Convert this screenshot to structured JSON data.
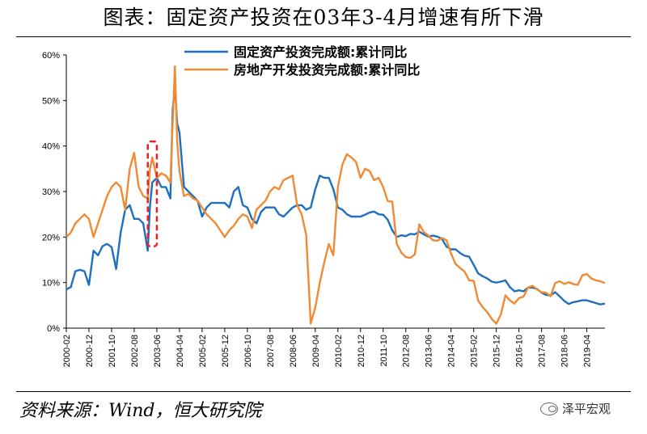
{
  "title": "图表：固定资产投资在03年3-4月增速有所下滑",
  "source": "资料来源：Wind，恒大研究院",
  "watermark": "泽平宏观",
  "colors": {
    "fixed_asset": "#1f6fbf",
    "real_estate": "#f08a33",
    "highlight_box": "#e8202a"
  },
  "chart_data": {
    "type": "line",
    "title": "",
    "xlabel": "",
    "ylabel": "",
    "x_range": [
      "2000-02",
      "2019-12"
    ],
    "ylim": [
      0,
      60
    ],
    "y_ticks": [
      "0%",
      "10%",
      "20%",
      "30%",
      "40%",
      "50%",
      "60%"
    ],
    "y_tick_values": [
      0,
      10,
      20,
      30,
      40,
      50,
      60
    ],
    "x_ticks": [
      "2000-02",
      "2000-12",
      "2001-10",
      "2002-08",
      "2003-06",
      "2004-04",
      "2005-02",
      "2005-12",
      "2006-10",
      "2007-08",
      "2008-06",
      "2009-04",
      "2010-02",
      "2010-12",
      "2011-10",
      "2012-08",
      "2013-06",
      "2014-04",
      "2015-02",
      "2015-12",
      "2016-10",
      "2017-08",
      "2018-06",
      "2019-04"
    ],
    "legend_position": "top",
    "highlight_box": {
      "x_start": "2003-02",
      "x_end": "2003-06",
      "y_start": 18,
      "y_end": 41,
      "style": "dashed"
    },
    "series": [
      {
        "name": "固定资产投资完成额:累计同比",
        "color_key": "fixed_asset",
        "points": [
          [
            "2000-02",
            8.5
          ],
          [
            "2000-04",
            9
          ],
          [
            "2000-06",
            12.5
          ],
          [
            "2000-08",
            12.8
          ],
          [
            "2000-10",
            12.5
          ],
          [
            "2000-12",
            9.5
          ],
          [
            "2001-02",
            17
          ],
          [
            "2001-04",
            16
          ],
          [
            "2001-06",
            18
          ],
          [
            "2001-08",
            18.5
          ],
          [
            "2001-10",
            17.8
          ],
          [
            "2001-12",
            13
          ],
          [
            "2002-02",
            21
          ],
          [
            "2002-04",
            26
          ],
          [
            "2002-06",
            27
          ],
          [
            "2002-08",
            24
          ],
          [
            "2002-10",
            24
          ],
          [
            "2002-12",
            23
          ],
          [
            "2003-02",
            17
          ],
          [
            "2003-03",
            27
          ],
          [
            "2003-04",
            32
          ],
          [
            "2003-06",
            33
          ],
          [
            "2003-08",
            31
          ],
          [
            "2003-10",
            31
          ],
          [
            "2003-12",
            28.5
          ],
          [
            "2004-01",
            48
          ],
          [
            "2004-02",
            53
          ],
          [
            "2004-03",
            45
          ],
          [
            "2004-04",
            43
          ],
          [
            "2004-06",
            31
          ],
          [
            "2004-08",
            30
          ],
          [
            "2004-10",
            29
          ],
          [
            "2004-12",
            28
          ],
          [
            "2005-02",
            24.5
          ],
          [
            "2005-04",
            26.5
          ],
          [
            "2005-06",
            27.5
          ],
          [
            "2005-08",
            27.5
          ],
          [
            "2005-10",
            27.5
          ],
          [
            "2005-12",
            27.5
          ],
          [
            "2006-02",
            26.5
          ],
          [
            "2006-04",
            30
          ],
          [
            "2006-06",
            31
          ],
          [
            "2006-08",
            27
          ],
          [
            "2006-10",
            26.5
          ],
          [
            "2006-12",
            24
          ],
          [
            "2007-02",
            23
          ],
          [
            "2007-04",
            25.5
          ],
          [
            "2007-06",
            26.5
          ],
          [
            "2007-08",
            26.5
          ],
          [
            "2007-10",
            26.5
          ],
          [
            "2007-12",
            25
          ],
          [
            "2008-02",
            24.5
          ],
          [
            "2008-04",
            25.5
          ],
          [
            "2008-06",
            26.5
          ],
          [
            "2008-08",
            27
          ],
          [
            "2008-10",
            27
          ],
          [
            "2008-12",
            26
          ],
          [
            "2009-02",
            26.5
          ],
          [
            "2009-04",
            30.5
          ],
          [
            "2009-06",
            33.5
          ],
          [
            "2009-08",
            33
          ],
          [
            "2009-10",
            33
          ],
          [
            "2009-12",
            30.5
          ],
          [
            "2010-02",
            26.5
          ],
          [
            "2010-04",
            26
          ],
          [
            "2010-06",
            25
          ],
          [
            "2010-08",
            24.5
          ],
          [
            "2010-10",
            24.5
          ],
          [
            "2010-12",
            24.5
          ],
          [
            "2011-02",
            24.9
          ],
          [
            "2011-04",
            25.4
          ],
          [
            "2011-06",
            25.6
          ],
          [
            "2011-08",
            25
          ],
          [
            "2011-10",
            24.9
          ],
          [
            "2011-12",
            23.8
          ],
          [
            "2012-02",
            21.5
          ],
          [
            "2012-04",
            20
          ],
          [
            "2012-06",
            20.4
          ],
          [
            "2012-08",
            20.2
          ],
          [
            "2012-10",
            20.7
          ],
          [
            "2012-12",
            20.6
          ],
          [
            "2013-02",
            21.2
          ],
          [
            "2013-04",
            20.6
          ],
          [
            "2013-06",
            20.1
          ],
          [
            "2013-08",
            20.3
          ],
          [
            "2013-10",
            20.1
          ],
          [
            "2013-12",
            19.6
          ],
          [
            "2014-02",
            17.9
          ],
          [
            "2014-04",
            17.3
          ],
          [
            "2014-06",
            17.3
          ],
          [
            "2014-08",
            16.5
          ],
          [
            "2014-10",
            15.9
          ],
          [
            "2014-12",
            15.7
          ],
          [
            "2015-02",
            13.9
          ],
          [
            "2015-04",
            12
          ],
          [
            "2015-06",
            11.4
          ],
          [
            "2015-08",
            10.9
          ],
          [
            "2015-10",
            10.2
          ],
          [
            "2015-12",
            10
          ],
          [
            "2016-02",
            10.2
          ],
          [
            "2016-04",
            10.5
          ],
          [
            "2016-06",
            9
          ],
          [
            "2016-08",
            8.1
          ],
          [
            "2016-10",
            8.3
          ],
          [
            "2016-12",
            8.1
          ],
          [
            "2017-02",
            8.9
          ],
          [
            "2017-04",
            8.9
          ],
          [
            "2017-06",
            8.6
          ],
          [
            "2017-08",
            7.8
          ],
          [
            "2017-10",
            7.3
          ],
          [
            "2017-12",
            7.2
          ],
          [
            "2018-02",
            7.9
          ],
          [
            "2018-04",
            7
          ],
          [
            "2018-06",
            6
          ],
          [
            "2018-08",
            5.3
          ],
          [
            "2018-10",
            5.7
          ],
          [
            "2018-12",
            5.9
          ],
          [
            "2019-02",
            6.1
          ],
          [
            "2019-04",
            6.1
          ],
          [
            "2019-06",
            5.8
          ],
          [
            "2019-08",
            5.5
          ],
          [
            "2019-10",
            5.2
          ],
          [
            "2019-12",
            5.4
          ]
        ]
      },
      {
        "name": "房地产开发投资完成额:累计同比",
        "color_key": "real_estate",
        "points": [
          [
            "2000-02",
            20
          ],
          [
            "2000-04",
            21
          ],
          [
            "2000-06",
            23
          ],
          [
            "2000-08",
            24
          ],
          [
            "2000-10",
            25
          ],
          [
            "2000-12",
            24
          ],
          [
            "2001-02",
            20
          ],
          [
            "2001-04",
            23
          ],
          [
            "2001-06",
            26
          ],
          [
            "2001-08",
            29
          ],
          [
            "2001-10",
            31
          ],
          [
            "2001-12",
            32
          ],
          [
            "2002-02",
            31
          ],
          [
            "2002-04",
            26
          ],
          [
            "2002-06",
            35
          ],
          [
            "2002-08",
            38.5
          ],
          [
            "2002-10",
            31
          ],
          [
            "2002-12",
            29
          ],
          [
            "2003-02",
            28.5
          ],
          [
            "2003-03",
            35
          ],
          [
            "2003-04",
            37.5
          ],
          [
            "2003-06",
            33
          ],
          [
            "2003-08",
            34
          ],
          [
            "2003-10",
            33.5
          ],
          [
            "2003-12",
            32
          ],
          [
            "2004-01",
            45
          ],
          [
            "2004-02",
            57.5
          ],
          [
            "2004-03",
            41
          ],
          [
            "2004-04",
            34.5
          ],
          [
            "2004-06",
            29
          ],
          [
            "2004-08",
            29.5
          ],
          [
            "2004-10",
            28.5
          ],
          [
            "2004-12",
            28
          ],
          [
            "2005-02",
            26.5
          ],
          [
            "2005-04",
            25
          ],
          [
            "2005-06",
            24
          ],
          [
            "2005-08",
            23
          ],
          [
            "2005-10",
            21.5
          ],
          [
            "2005-12",
            20
          ],
          [
            "2006-02",
            21.5
          ],
          [
            "2006-04",
            22.5
          ],
          [
            "2006-06",
            24
          ],
          [
            "2006-08",
            25
          ],
          [
            "2006-10",
            24.5
          ],
          [
            "2006-12",
            22
          ],
          [
            "2007-02",
            26
          ],
          [
            "2007-04",
            27
          ],
          [
            "2007-06",
            28
          ],
          [
            "2007-08",
            30
          ],
          [
            "2007-10",
            31
          ],
          [
            "2007-12",
            30.5
          ],
          [
            "2008-02",
            32.5
          ],
          [
            "2008-04",
            33
          ],
          [
            "2008-06",
            33.5
          ],
          [
            "2008-08",
            27
          ],
          [
            "2008-10",
            25
          ],
          [
            "2008-12",
            20.5
          ],
          [
            "2009-02",
            1
          ],
          [
            "2009-04",
            4.5
          ],
          [
            "2009-06",
            10
          ],
          [
            "2009-08",
            14.5
          ],
          [
            "2009-10",
            18.5
          ],
          [
            "2009-12",
            16
          ],
          [
            "2010-02",
            31
          ],
          [
            "2010-04",
            36
          ],
          [
            "2010-06",
            38.2
          ],
          [
            "2010-08",
            37.5
          ],
          [
            "2010-10",
            36.5
          ],
          [
            "2010-12",
            33
          ],
          [
            "2011-02",
            35
          ],
          [
            "2011-04",
            34.5
          ],
          [
            "2011-06",
            32.5
          ],
          [
            "2011-08",
            33
          ],
          [
            "2011-10",
            31
          ],
          [
            "2011-12",
            27.9
          ],
          [
            "2012-02",
            27.8
          ],
          [
            "2012-04",
            18.5
          ],
          [
            "2012-06",
            16.6
          ],
          [
            "2012-08",
            15.6
          ],
          [
            "2012-10",
            15.4
          ],
          [
            "2012-12",
            16.2
          ],
          [
            "2013-02",
            22.8
          ],
          [
            "2013-04",
            21.1
          ],
          [
            "2013-06",
            20.3
          ],
          [
            "2013-08",
            19.3
          ],
          [
            "2013-10",
            19.2
          ],
          [
            "2013-12",
            19.8
          ],
          [
            "2014-02",
            19.3
          ],
          [
            "2014-04",
            16.4
          ],
          [
            "2014-06",
            14.1
          ],
          [
            "2014-08",
            13.2
          ],
          [
            "2014-10",
            12.4
          ],
          [
            "2014-12",
            10.5
          ],
          [
            "2015-02",
            10.4
          ],
          [
            "2015-04",
            6
          ],
          [
            "2015-06",
            4.6
          ],
          [
            "2015-08",
            3.5
          ],
          [
            "2015-10",
            2
          ],
          [
            "2015-12",
            1
          ],
          [
            "2016-02",
            3
          ],
          [
            "2016-04",
            7.2
          ],
          [
            "2016-06",
            6.1
          ],
          [
            "2016-08",
            5.4
          ],
          [
            "2016-10",
            6.6
          ],
          [
            "2016-12",
            6.9
          ],
          [
            "2017-02",
            8.9
          ],
          [
            "2017-04",
            9.3
          ],
          [
            "2017-06",
            8.5
          ],
          [
            "2017-08",
            7.9
          ],
          [
            "2017-10",
            7.8
          ],
          [
            "2017-12",
            7
          ],
          [
            "2018-02",
            9.9
          ],
          [
            "2018-04",
            10.3
          ],
          [
            "2018-06",
            9.7
          ],
          [
            "2018-08",
            10.1
          ],
          [
            "2018-10",
            9.7
          ],
          [
            "2018-12",
            9.5
          ],
          [
            "2019-02",
            11.6
          ],
          [
            "2019-04",
            11.9
          ],
          [
            "2019-06",
            10.9
          ],
          [
            "2019-08",
            10.5
          ],
          [
            "2019-10",
            10.3
          ],
          [
            "2019-12",
            9.9
          ]
        ]
      }
    ]
  }
}
